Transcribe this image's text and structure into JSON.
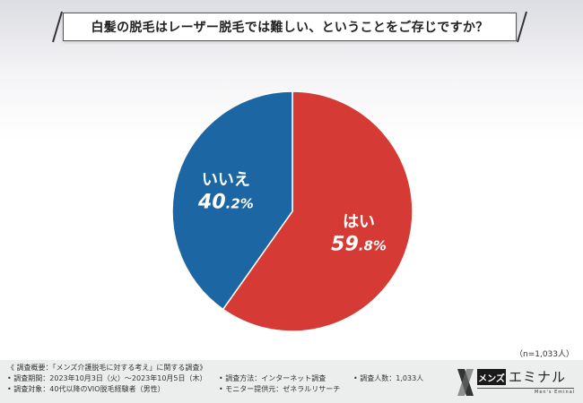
{
  "title": "白髪の脱毛はレーザー脱毛では難しい、ということをご存じですか？",
  "sample_size": "（n=1,033人）",
  "colors": {
    "yes": "#d63a35",
    "no": "#1b66a3"
  },
  "chart_data": {
    "type": "pie",
    "categories": [
      "はい",
      "いいえ"
    ],
    "values": [
      59.8,
      40.2
    ],
    "labels": [
      "はい",
      "いいえ"
    ],
    "value_labels": [
      "59.8%",
      "40.2%"
    ],
    "start": "12 o'clock, clockwise"
  },
  "footer": {
    "overview": "《 調査概要：「メンズ介護脱毛に対する考え」に関する調査》",
    "period": "• 調査期間：2023年10月3日（火）～2023年10月5日（木）",
    "method": "• 調査方法：インターネット調査",
    "count": "• 調査人数：1,033人",
    "target": "• 調査対象：40代以降のVIO脱毛経験者（男性）",
    "provider": "• モニター提供元：ゼネラルリサーチ"
  },
  "logo": {
    "box": "メンズ",
    "text": "エミナル",
    "sub": "Men's Eminal",
    "icon": "eminal-logo-icon"
  }
}
